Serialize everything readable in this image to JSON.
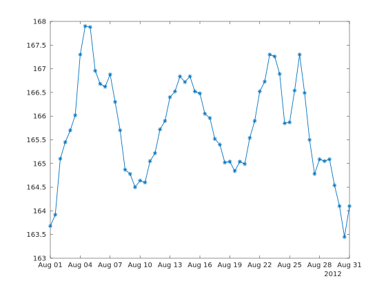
{
  "chart_data": {
    "type": "line",
    "title": "",
    "xlabel": "",
    "ylabel": "",
    "year_label": "2012",
    "colors": {
      "series": "#0072bd",
      "axes": "#262626"
    },
    "marker": "asterisk",
    "grid": false,
    "ylim": [
      163,
      168
    ],
    "yticks": [
      163,
      163.5,
      164,
      164.5,
      165,
      165.5,
      166,
      166.5,
      167,
      167.5,
      168
    ],
    "yticklabels": [
      "163",
      "163.5",
      "164",
      "164.5",
      "165",
      "165.5",
      "166",
      "166.5",
      "167",
      "167.5",
      "168"
    ],
    "xlim": [
      "2012-08-01",
      "2012-08-31"
    ],
    "xticks": [
      "2012-08-01",
      "2012-08-04",
      "2012-08-07",
      "2012-08-10",
      "2012-08-13",
      "2012-08-16",
      "2012-08-19",
      "2012-08-22",
      "2012-08-25",
      "2012-08-28",
      "2012-08-31"
    ],
    "xticklabels": [
      "Aug 01",
      "Aug 04",
      "Aug 07",
      "Aug 10",
      "Aug 13",
      "Aug 16",
      "Aug 19",
      "Aug 22",
      "Aug 25",
      "Aug 28",
      "Aug 31"
    ],
    "series": [
      {
        "x": [
          "2012-08-01 00:00",
          "2012-08-01 12:00",
          "2012-08-02 00:00",
          "2012-08-02 12:00",
          "2012-08-03 00:00",
          "2012-08-03 12:00",
          "2012-08-04 00:00",
          "2012-08-04 12:00",
          "2012-08-05 00:00",
          "2012-08-05 12:00",
          "2012-08-06 00:00",
          "2012-08-06 12:00",
          "2012-08-07 00:00",
          "2012-08-07 12:00",
          "2012-08-08 00:00",
          "2012-08-08 12:00",
          "2012-08-09 00:00",
          "2012-08-09 12:00",
          "2012-08-10 00:00",
          "2012-08-10 12:00",
          "2012-08-11 00:00",
          "2012-08-11 12:00",
          "2012-08-12 00:00",
          "2012-08-12 12:00",
          "2012-08-13 00:00",
          "2012-08-13 12:00",
          "2012-08-14 00:00",
          "2012-08-14 12:00",
          "2012-08-15 00:00",
          "2012-08-15 12:00",
          "2012-08-16 00:00",
          "2012-08-16 12:00",
          "2012-08-17 00:00",
          "2012-08-17 12:00",
          "2012-08-18 00:00",
          "2012-08-18 12:00",
          "2012-08-19 00:00",
          "2012-08-19 12:00",
          "2012-08-20 00:00",
          "2012-08-20 12:00",
          "2012-08-21 00:00",
          "2012-08-21 12:00",
          "2012-08-22 00:00",
          "2012-08-22 12:00",
          "2012-08-23 00:00",
          "2012-08-23 12:00",
          "2012-08-24 00:00",
          "2012-08-24 12:00",
          "2012-08-25 00:00",
          "2012-08-25 12:00",
          "2012-08-26 00:00",
          "2012-08-26 12:00",
          "2012-08-27 00:00",
          "2012-08-27 12:00",
          "2012-08-28 00:00",
          "2012-08-28 12:00",
          "2012-08-29 00:00",
          "2012-08-29 12:00",
          "2012-08-30 00:00",
          "2012-08-30 12:00",
          "2012-08-31 00:00"
        ],
        "y": [
          163.68,
          163.92,
          165.1,
          165.45,
          165.7,
          166.02,
          167.3,
          167.9,
          167.88,
          166.96,
          166.68,
          166.62,
          166.88,
          166.3,
          165.7,
          164.87,
          164.78,
          164.5,
          164.64,
          164.6,
          165.05,
          165.22,
          165.72,
          165.9,
          166.4,
          166.52,
          166.84,
          166.72,
          166.84,
          166.52,
          166.48,
          166.05,
          165.96,
          165.52,
          165.4,
          165.02,
          165.04,
          164.84,
          165.04,
          164.99,
          165.54,
          165.9,
          166.52,
          166.73,
          167.3,
          167.26,
          166.89,
          165.85,
          165.87,
          166.54,
          167.3,
          166.49,
          165.5,
          164.78,
          165.09,
          165.05,
          165.09,
          164.54,
          164.1,
          163.45,
          164.1
        ]
      }
    ]
  }
}
